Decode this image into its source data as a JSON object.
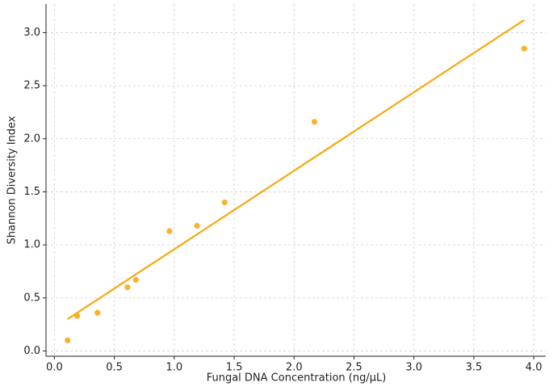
{
  "chart_data": {
    "type": "scatter",
    "x_label": "Fungal DNA Concentration (ng/μL)",
    "y_label": "Shannon Diversity Index",
    "series": [
      {
        "style": "markers",
        "color": "#fbb12a",
        "x": [
          0.11,
          0.19,
          0.36,
          0.61,
          0.68,
          0.96,
          1.19,
          1.42,
          2.17,
          3.92
        ],
        "values": [
          0.1,
          0.33,
          0.36,
          0.6,
          0.67,
          1.13,
          1.18,
          1.4,
          2.16,
          2.85
        ]
      },
      {
        "style": "line",
        "color": "#f7a90f",
        "x": [
          0.11,
          3.92
        ],
        "values": [
          0.3,
          3.12
        ]
      }
    ],
    "xlim": [
      -0.07,
      4.1
    ],
    "ylim": [
      -0.05,
      3.27
    ],
    "xticks": [
      {
        "value": 0,
        "label": "0.0"
      },
      {
        "value": 0.5,
        "label": "0.5"
      },
      {
        "value": 1,
        "label": "1.0"
      },
      {
        "value": 1.5,
        "label": "1.5"
      },
      {
        "value": 2,
        "label": "2.0"
      },
      {
        "value": 2.5,
        "label": "2.5"
      },
      {
        "value": 3,
        "label": "3.0"
      },
      {
        "value": 3.5,
        "label": "3.5"
      },
      {
        "value": 4,
        "label": "4.0"
      }
    ],
    "yticks": [
      {
        "value": 0,
        "label": "0.0"
      },
      {
        "value": 0.5,
        "label": "0.5"
      },
      {
        "value": 1,
        "label": "1.0"
      },
      {
        "value": 1.5,
        "label": "1.5"
      },
      {
        "value": 2,
        "label": "2.0"
      },
      {
        "value": 2.5,
        "label": "2.5"
      },
      {
        "value": 3,
        "label": "3.0"
      }
    ],
    "grid": true
  }
}
